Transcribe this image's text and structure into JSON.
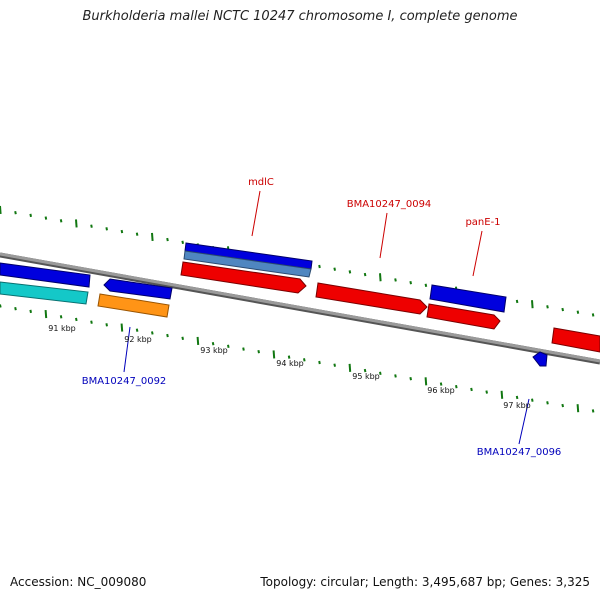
{
  "header": {
    "title": "Burkholderia mallei NCTC 10247 chromosome I, complete genome"
  },
  "footer": {
    "accession": "Accession: NC_009080",
    "info": "Topology: circular; Length: 3,495,687 bp; Genes: 3,325"
  },
  "map": {
    "kbp_labels": [
      "91 kbp",
      "92 kbp",
      "93 kbp",
      "94 kbp",
      "95 kbp",
      "96 kbp",
      "97 kbp"
    ],
    "gene_labels": [
      {
        "text": "mdlC",
        "strand": "forward"
      },
      {
        "text": "BMA10247_0094",
        "strand": "forward"
      },
      {
        "text": "panE-1",
        "strand": "forward"
      },
      {
        "text": "BMA10247_0092",
        "strand": "reverse"
      },
      {
        "text": "BMA10247_0096",
        "strand": "reverse"
      }
    ],
    "colors": {
      "forward_cds": "#ee0000",
      "reverse_cds": "#0000dd",
      "gene_light_blue": "#4f86c0",
      "cyan": "#14c8c8",
      "orange": "#ff9416",
      "backbone": "#8a8a8a",
      "tick": "#117711",
      "label_forward": "#cc0000",
      "label_reverse": "#0000bb"
    }
  }
}
